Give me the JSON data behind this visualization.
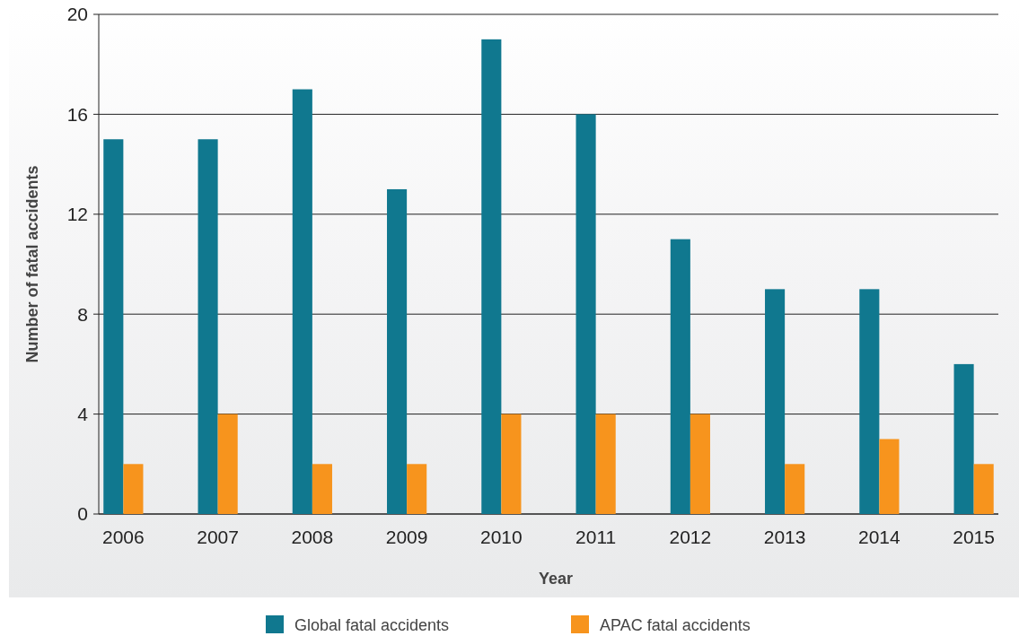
{
  "chart_data": {
    "type": "bar",
    "xlabel": "Year",
    "ylabel": "Number of fatal accidents",
    "categories": [
      "2006",
      "2007",
      "2008",
      "2009",
      "2010",
      "2011",
      "2012",
      "2013",
      "2014",
      "2015"
    ],
    "series": [
      {
        "name": "Global fatal accidents",
        "color": "#10788f",
        "values": [
          15,
          15,
          17,
          13,
          19,
          16,
          11,
          9,
          9,
          6
        ]
      },
      {
        "name": "APAC fatal accidents",
        "color": "#f7941d",
        "values": [
          2,
          4,
          2,
          2,
          4,
          4,
          4,
          2,
          3,
          2
        ]
      }
    ],
    "ylim": [
      0,
      20
    ],
    "yticks": [
      0,
      4,
      8,
      12,
      16,
      20
    ],
    "grid": "y",
    "legend": "bottom"
  }
}
